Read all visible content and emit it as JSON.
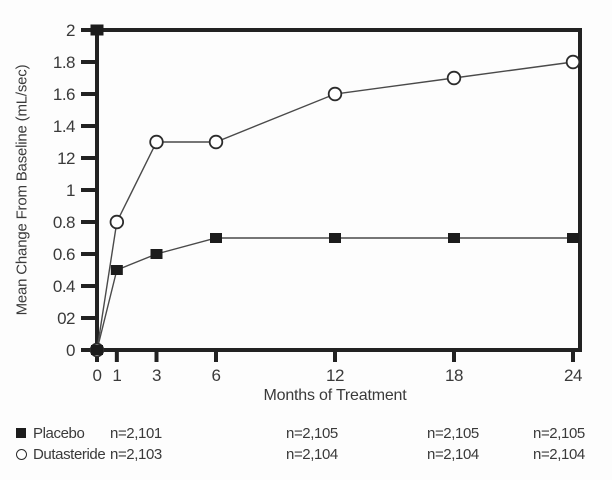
{
  "chart_data": {
    "type": "line",
    "title": "",
    "xlabel": "Months of Treatment",
    "ylabel": "Mean Change From Baseline (mL/sec)",
    "xlim": [
      0,
      24
    ],
    "ylim": [
      0,
      2
    ],
    "grid": false,
    "legend_position": "bottom-left",
    "x_ticks": [
      {
        "v": 0,
        "label": "0"
      },
      {
        "v": 1,
        "label": "1"
      },
      {
        "v": 3,
        "label": "3"
      },
      {
        "v": 6,
        "label": "6"
      },
      {
        "v": 12,
        "label": "12"
      },
      {
        "v": 18,
        "label": "18"
      },
      {
        "v": 24,
        "label": "24"
      }
    ],
    "y_ticks": [
      {
        "v": 0,
        "label": "0"
      },
      {
        "v": 0.2,
        "label": "02"
      },
      {
        "v": 0.4,
        "label": "0.4"
      },
      {
        "v": 0.6,
        "label": "0.6"
      },
      {
        "v": 0.8,
        "label": "0.8"
      },
      {
        "v": 1,
        "label": "1"
      },
      {
        "v": 1.2,
        "label": "12"
      },
      {
        "v": 1.4,
        "label": "1.4"
      },
      {
        "v": 1.6,
        "label": "1.6"
      },
      {
        "v": 1.8,
        "label": "1.8"
      },
      {
        "v": 2,
        "label": "2"
      }
    ],
    "x": [
      0,
      1,
      3,
      6,
      12,
      18,
      24
    ],
    "series": [
      {
        "name": "Placebo",
        "marker": "filled-square",
        "values": [
          0,
          0.5,
          0.6,
          0.7,
          0.7,
          0.7,
          0.7
        ]
      },
      {
        "name": "Dutasteride",
        "marker": "open-circle",
        "values": [
          0,
          0.8,
          1.3,
          1.3,
          1.6,
          1.7,
          1.8
        ]
      }
    ]
  },
  "legend": {
    "rows": [
      {
        "marker": "filled-square",
        "label": "Placebo",
        "counts": [
          "n=2,101",
          "n=2,105",
          "n=2,105",
          "n=2,105"
        ]
      },
      {
        "marker": "open-circle",
        "label": "Dutasteride",
        "counts": [
          "n=2,103",
          "n=2,104",
          "n=2,104",
          "n=2,104"
        ]
      }
    ]
  },
  "colors": {
    "frame": "#222222",
    "series_line": "#4a4a4a",
    "marker_fill": "#1c1c1c",
    "text": "#3a3a3a",
    "background": "#fdfdfd"
  }
}
